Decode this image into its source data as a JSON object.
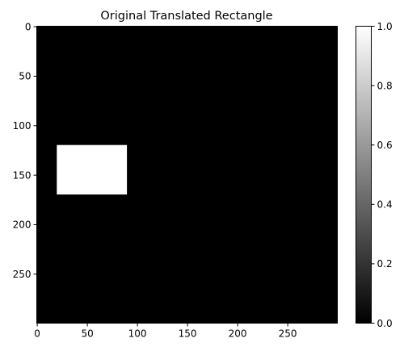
{
  "chart_data": {
    "type": "heatmap",
    "title": "Original Translated Rectangle",
    "xlabel": "",
    "ylabel": "",
    "image_size": [
      300,
      300
    ],
    "xlim": [
      0,
      300
    ],
    "ylim": [
      300,
      0
    ],
    "background_value": 0,
    "rectangle": {
      "x_start": 20,
      "x_end": 90,
      "y_start": 120,
      "y_end": 170,
      "value": 1
    },
    "x_ticks": [
      0,
      50,
      100,
      150,
      200,
      250
    ],
    "y_ticks": [
      0,
      50,
      100,
      150,
      200,
      250
    ],
    "colorbar": {
      "colormap": "gray",
      "range": [
        0.0,
        1.0
      ],
      "ticks": [
        "0.0",
        "0.2",
        "0.4",
        "0.6",
        "0.8",
        "1.0"
      ]
    },
    "grid": false,
    "legend": "none"
  }
}
